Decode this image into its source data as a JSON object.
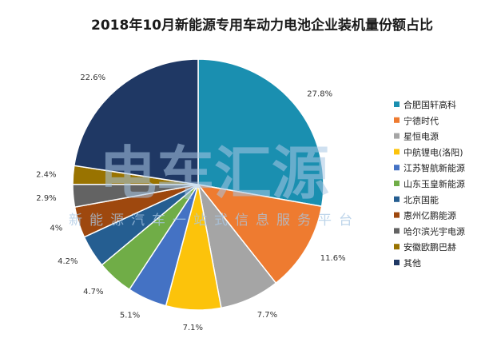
{
  "watermark": {
    "logo_text": "电车汇源",
    "sub_text": "新能源汽车一站式信息服务平台"
  },
  "chart_data": {
    "type": "pie",
    "title": "2018年10月新能源专用车动力电池企业装机量份额占比",
    "legend_position": "right",
    "start_angle_deg": 0,
    "direction": "clockwise",
    "slices": [
      {
        "name": "合肥国轩高科",
        "value": 27.8,
        "label": "27.8%",
        "color": "#1a8fb0"
      },
      {
        "name": "宁德时代",
        "value": 11.6,
        "label": "11.6%",
        "color": "#ee7b30"
      },
      {
        "name": "星恒电源",
        "value": 7.7,
        "label": "7.7%",
        "color": "#a5a5a5"
      },
      {
        "name": "中航锂电(洛阳)",
        "value": 7.1,
        "label": "7.1%",
        "color": "#fcc30b"
      },
      {
        "name": "江苏智航新能源",
        "value": 5.1,
        "label": "5.1%",
        "color": "#4472c4"
      },
      {
        "name": "山东玉皇新能源",
        "value": 4.7,
        "label": "4.7%",
        "color": "#70ad47"
      },
      {
        "name": "北京国能",
        "value": 4.2,
        "label": "4.2%",
        "color": "#255e91"
      },
      {
        "name": "惠州亿鹏能源",
        "value": 4.0,
        "label": "4%",
        "color": "#9e480e"
      },
      {
        "name": "哈尔滨光宇电源",
        "value": 2.9,
        "label": "2.9%",
        "color": "#636363"
      },
      {
        "name": "安徽欧鹏巴赫",
        "value": 2.4,
        "label": "2.4%",
        "color": "#997300"
      },
      {
        "name": "其他",
        "value": 22.6,
        "label": "22.6%",
        "color": "#1f3864"
      }
    ]
  }
}
